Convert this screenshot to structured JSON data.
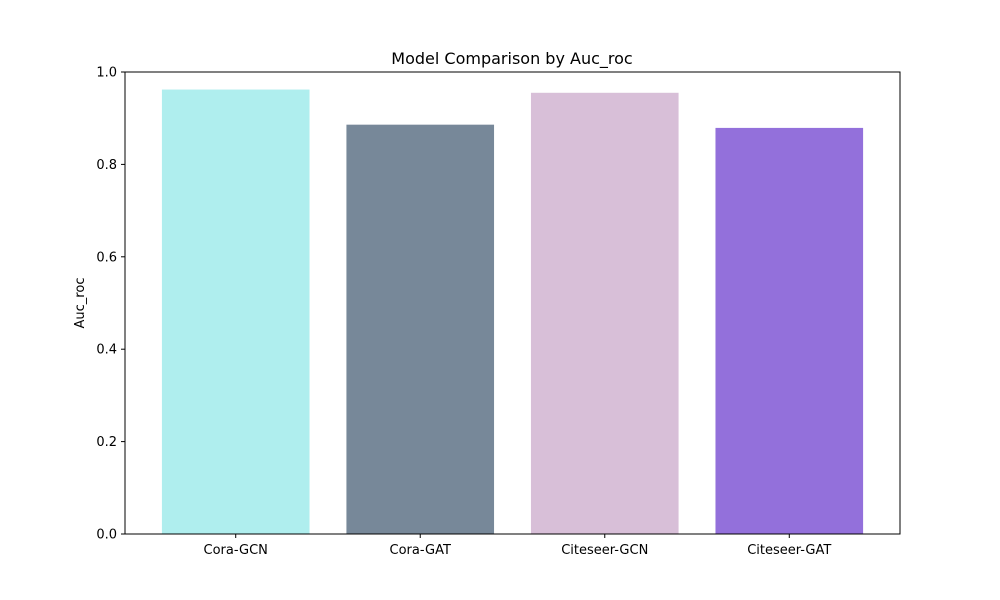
{
  "chart_data": {
    "type": "bar",
    "title": "Model Comparison by Auc_roc",
    "xlabel": "",
    "ylabel": "Auc_roc",
    "categories": [
      "Cora-GCN",
      "Cora-GAT",
      "Citeseer-GCN",
      "Citeseer-GAT"
    ],
    "values": [
      0.962,
      0.886,
      0.955,
      0.879
    ],
    "colors": [
      "#afeeee",
      "#778899",
      "#d8bfd8",
      "#9370db"
    ],
    "ylim": [
      0,
      1.0
    ],
    "yticks": [
      0.0,
      0.2,
      0.4,
      0.6,
      0.8,
      1.0
    ],
    "ytick_labels": [
      "0.0",
      "0.2",
      "0.4",
      "0.6",
      "0.8",
      "1.0"
    ],
    "grid": false,
    "legend": "none"
  }
}
